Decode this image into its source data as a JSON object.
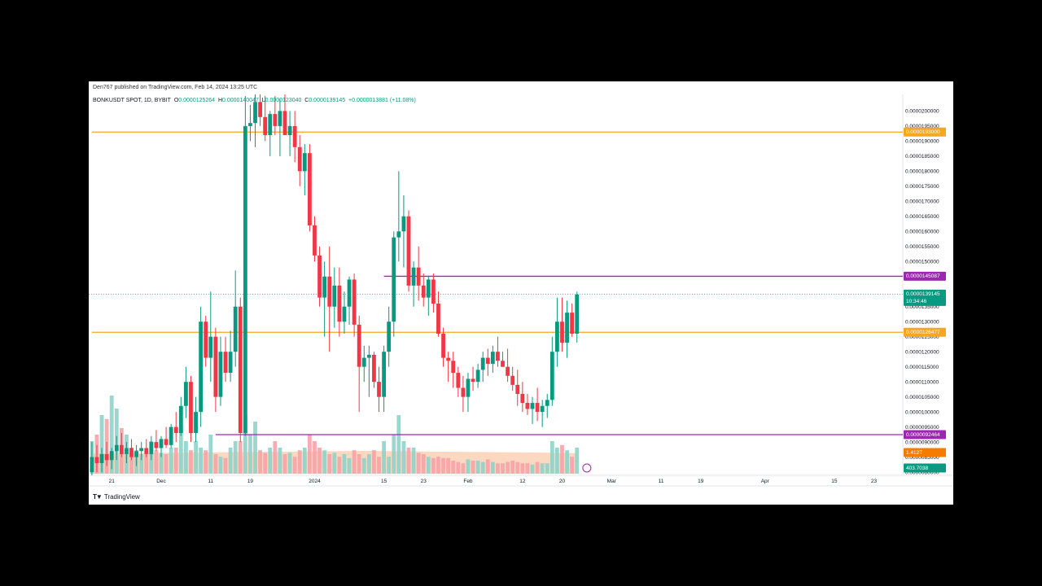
{
  "header": {
    "publisher": "Den767 published on TradingView.com, Feb 14, 2024 13:25 UTC",
    "symbol": "BONKUSDT SPOT, 1D, BYBIT",
    "o_label": "O",
    "o_value": "0.0000125264",
    "h_label": "H",
    "h_value": "0.0000140047",
    "l_label": "L",
    "l_value": "0.0000123040",
    "c_label": "C",
    "c_value": "0.0000139145",
    "change": "+0.0000013881 (+11.08%)"
  },
  "footer": {
    "brand": "TradingView"
  },
  "colors": {
    "up": "#089981",
    "down": "#f23645",
    "vol_up": "#8fd3c9",
    "vol_down": "#f6a3a9",
    "orange": "#f5a623",
    "purple": "#9c27b0",
    "price": "#089981"
  },
  "chart_data": {
    "type": "candlestick",
    "y_ticks": [
      "0.0000200000",
      "0.0000195000",
      "0.0000190000",
      "0.0000185000",
      "0.0000180000",
      "0.0000175000",
      "0.0000170000",
      "0.0000165000",
      "0.0000160000",
      "0.0000155000",
      "0.0000150000",
      "0.0000145000",
      "0.0000140000",
      "0.0000135000",
      "0.0000130000",
      "0.0000125000",
      "0.0000120000",
      "0.0000115000",
      "0.0000110000",
      "0.0000105000",
      "0.0000100000",
      "0.0000095000",
      "0.0000090000",
      "0.0000085000",
      "0.0000080000"
    ],
    "x_labels": [
      {
        "label": "21",
        "day": -10
      },
      {
        "label": "Dec",
        "day": 0
      },
      {
        "label": "11",
        "day": 10
      },
      {
        "label": "19",
        "day": 18
      },
      {
        "label": "2024",
        "day": 31
      },
      {
        "label": "15",
        "day": 45
      },
      {
        "label": "23",
        "day": 53
      },
      {
        "label": "Feb",
        "day": 62
      },
      {
        "label": "12",
        "day": 73
      },
      {
        "label": "20",
        "day": 81
      },
      {
        "label": "Mar",
        "day": 91
      },
      {
        "label": "11",
        "day": 101
      },
      {
        "label": "19",
        "day": 109
      },
      {
        "label": "Apr",
        "day": 122
      },
      {
        "label": "15",
        "day": 136
      },
      {
        "label": "23",
        "day": 144
      }
    ],
    "levels": [
      {
        "label": "0.0000193000",
        "value": 19.3,
        "color": "orange",
        "start_day": -14
      },
      {
        "label": "0.0000145087",
        "value": 14.5087,
        "color": "purple",
        "start_day": 45
      },
      {
        "label": "0.0000126477",
        "value": 12.6477,
        "color": "orange",
        "start_day": -14
      },
      {
        "label": "0.0000092464",
        "value": 9.2464,
        "color": "purple",
        "start_day": 11
      }
    ],
    "price_badge": {
      "value": "0.0000139145",
      "countdown": "10:34:46",
      "level": 13.9145
    },
    "volume_badges": [
      {
        "value": "1.412T",
        "color": "#f57c00"
      },
      {
        "value": "403.7038",
        "color": "#089981"
      }
    ],
    "candles": [
      [
        8.0,
        9.0,
        7.8,
        8.5,
        2.5
      ],
      [
        8.5,
        8.9,
        8.0,
        8.3,
        3.0
      ],
      [
        8.3,
        8.8,
        8.0,
        8.6,
        4.5
      ],
      [
        8.6,
        9.0,
        8.2,
        8.4,
        4.2
      ],
      [
        8.4,
        8.8,
        8.1,
        8.7,
        6.0
      ],
      [
        8.7,
        9.2,
        8.4,
        8.9,
        5.0
      ],
      [
        8.9,
        9.3,
        8.5,
        8.6,
        3.5
      ],
      [
        8.6,
        9.0,
        8.3,
        8.8,
        3.0
      ],
      [
        8.8,
        9.1,
        8.4,
        8.5,
        2.0
      ],
      [
        8.5,
        8.9,
        8.2,
        8.7,
        1.8
      ],
      [
        8.7,
        9.0,
        8.4,
        8.8,
        1.5
      ],
      [
        8.8,
        9.1,
        8.5,
        8.6,
        1.5
      ],
      [
        8.6,
        9.2,
        8.4,
        9.0,
        2.5
      ],
      [
        9.0,
        9.4,
        8.7,
        8.8,
        1.8
      ],
      [
        8.8,
        9.2,
        8.5,
        9.1,
        1.6
      ],
      [
        9.1,
        9.5,
        8.8,
        8.9,
        1.5
      ],
      [
        8.9,
        9.6,
        8.8,
        9.5,
        2.0
      ],
      [
        9.5,
        10.0,
        9.0,
        9.3,
        2.0
      ],
      [
        9.3,
        10.5,
        9.2,
        10.2,
        3.5
      ],
      [
        10.2,
        11.5,
        9.8,
        11.0,
        2.5
      ],
      [
        11.0,
        11.2,
        9.0,
        9.3,
        1.8
      ],
      [
        9.3,
        10.5,
        9.0,
        10.0,
        2.5
      ],
      [
        10.0,
        13.5,
        9.5,
        13.0,
        2.0
      ],
      [
        13.0,
        13.2,
        11.5,
        11.8,
        1.8
      ],
      [
        11.8,
        14.0,
        11.0,
        12.5,
        3.0
      ],
      [
        12.5,
        12.8,
        10.0,
        10.5,
        1.5
      ],
      [
        10.5,
        12.5,
        10.2,
        12.0,
        1.3
      ],
      [
        12.0,
        12.5,
        11.0,
        11.3,
        1.2
      ],
      [
        11.3,
        12.7,
        11.0,
        12.0,
        2.0
      ],
      [
        12.0,
        14.7,
        11.5,
        13.5,
        2.5
      ],
      [
        13.5,
        13.8,
        9.0,
        9.3,
        2.5
      ],
      [
        9.3,
        20.5,
        9.2,
        19.5,
        4.5
      ],
      [
        19.5,
        20.2,
        19.0,
        19.6,
        3.0
      ],
      [
        19.6,
        20.6,
        18.8,
        20.3,
        4.0
      ],
      [
        20.3,
        20.7,
        19.5,
        19.8,
        1.8
      ],
      [
        19.8,
        20.5,
        19.0,
        19.2,
        1.6
      ],
      [
        19.2,
        20.0,
        18.5,
        19.9,
        2.0
      ],
      [
        19.9,
        20.5,
        19.2,
        19.5,
        2.5
      ],
      [
        19.5,
        20.4,
        18.5,
        20.0,
        2.0
      ],
      [
        20.0,
        20.6,
        19.3,
        19.2,
        1.5
      ],
      [
        19.2,
        20.0,
        18.5,
        19.5,
        1.6
      ],
      [
        19.5,
        20.0,
        18.3,
        18.8,
        1.3
      ],
      [
        18.8,
        19.2,
        17.5,
        18.0,
        1.8
      ],
      [
        18.0,
        18.9,
        17.2,
        18.6,
        2.0
      ],
      [
        18.6,
        18.9,
        16.0,
        16.2,
        3.0
      ],
      [
        16.2,
        16.5,
        15.0,
        15.2,
        2.5
      ],
      [
        15.2,
        15.5,
        13.5,
        13.8,
        2.0
      ],
      [
        13.8,
        15.0,
        12.5,
        14.5,
        1.8
      ],
      [
        14.5,
        15.5,
        12.0,
        13.5,
        1.5
      ],
      [
        13.5,
        14.8,
        12.8,
        14.2,
        1.6
      ],
      [
        14.2,
        14.8,
        12.5,
        13.0,
        1.3
      ],
      [
        13.0,
        14.0,
        12.6,
        13.5,
        1.5
      ],
      [
        13.5,
        14.5,
        12.9,
        14.4,
        1.2
      ],
      [
        14.4,
        14.6,
        12.5,
        12.9,
        1.8
      ],
      [
        12.9,
        13.2,
        10.0,
        11.5,
        1.5
      ],
      [
        11.5,
        12.2,
        11.0,
        11.8,
        1.2
      ],
      [
        11.8,
        12.2,
        10.5,
        11.9,
        1.5
      ],
      [
        11.9,
        12.0,
        10.8,
        11.0,
        1.8
      ],
      [
        11.0,
        11.5,
        10.0,
        10.5,
        1.3
      ],
      [
        10.5,
        12.2,
        10.0,
        12.0,
        2.5
      ],
      [
        12.0,
        13.5,
        11.5,
        13.0,
        1.3
      ],
      [
        13.0,
        16.0,
        12.5,
        15.8,
        3.0
      ],
      [
        15.8,
        18.0,
        15.0,
        16.0,
        4.5
      ],
      [
        16.0,
        17.2,
        14.8,
        16.5,
        2.5
      ],
      [
        16.5,
        16.7,
        14.0,
        14.2,
        2.0
      ],
      [
        14.2,
        15.0,
        13.5,
        14.8,
        2.0
      ],
      [
        14.8,
        15.5,
        13.7,
        14.2,
        1.6
      ],
      [
        14.2,
        14.6,
        13.5,
        13.8,
        1.5
      ],
      [
        13.8,
        14.5,
        13.2,
        14.4,
        1.3
      ],
      [
        14.4,
        14.6,
        13.3,
        13.6,
        1.2
      ],
      [
        13.6,
        14.0,
        12.5,
        12.6,
        1.3
      ],
      [
        12.6,
        12.8,
        11.5,
        11.8,
        1.2
      ],
      [
        11.8,
        12.0,
        11.0,
        11.7,
        1.2
      ],
      [
        11.7,
        12.0,
        10.8,
        11.3,
        1.0
      ],
      [
        11.3,
        11.5,
        10.5,
        10.8,
        0.9
      ],
      [
        10.8,
        11.2,
        10.0,
        10.5,
        0.8
      ],
      [
        10.5,
        11.3,
        10.0,
        11.1,
        1.1
      ],
      [
        11.1,
        11.5,
        10.7,
        11.0,
        1.0
      ],
      [
        11.0,
        11.6,
        10.8,
        11.4,
        1.0
      ],
      [
        11.4,
        12.0,
        11.0,
        11.8,
        0.9
      ],
      [
        11.8,
        12.1,
        11.2,
        11.6,
        1.1
      ],
      [
        11.6,
        12.2,
        11.3,
        12.0,
        0.9
      ],
      [
        12.0,
        12.5,
        11.5,
        11.7,
        0.8
      ],
      [
        11.7,
        12.0,
        11.5,
        11.5,
        0.8
      ],
      [
        11.5,
        12.1,
        11.0,
        11.2,
        0.9
      ],
      [
        11.2,
        11.5,
        10.7,
        10.9,
        1.0
      ],
      [
        10.9,
        11.4,
        10.2,
        10.6,
        0.9
      ],
      [
        10.6,
        11.0,
        10.0,
        10.3,
        0.8
      ],
      [
        10.3,
        10.6,
        9.9,
        10.1,
        0.8
      ],
      [
        10.1,
        10.5,
        9.6,
        10.3,
        0.7
      ],
      [
        10.3,
        10.8,
        9.7,
        10.0,
        0.9
      ],
      [
        10.0,
        10.4,
        9.5,
        10.2,
        0.8
      ],
      [
        10.2,
        10.6,
        9.8,
        10.4,
        0.8
      ],
      [
        10.4,
        12.5,
        10.2,
        12.0,
        2.5
      ],
      [
        12.0,
        13.8,
        11.5,
        13.0,
        2.0
      ],
      [
        13.0,
        13.8,
        12.0,
        12.3,
        2.2
      ],
      [
        12.3,
        13.7,
        11.8,
        13.3,
        1.8
      ],
      [
        13.3,
        13.6,
        12.5,
        12.6,
        1.3
      ],
      [
        12.6,
        14.0,
        12.3,
        13.9,
        2.0
      ]
    ]
  }
}
